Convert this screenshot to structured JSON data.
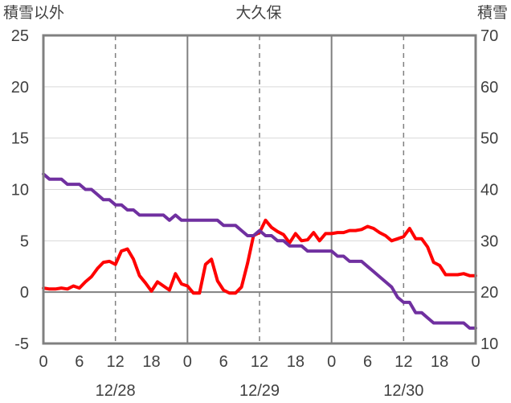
{
  "chart_data": {
    "type": "line",
    "title": "大久保",
    "left_axis_label": "積雪以外",
    "right_axis_label": "積雪",
    "y_left": {
      "min": -5,
      "max": 25,
      "step": 5,
      "ticks": [
        "25",
        "20",
        "15",
        "10",
        "5",
        "0",
        "-5"
      ]
    },
    "y_right": {
      "min": 10,
      "max": 70,
      "step": 10,
      "ticks": [
        "70",
        "60",
        "50",
        "40",
        "30",
        "20",
        "10"
      ]
    },
    "x": {
      "min": 0,
      "max": 72,
      "tick_step": 6,
      "tick_labels": [
        "0",
        "6",
        "12",
        "18",
        "0",
        "6",
        "12",
        "18",
        "0",
        "6",
        "12",
        "18",
        "0"
      ],
      "day_labels": [
        {
          "label": "12/28",
          "at": 12
        },
        {
          "label": "12/29",
          "at": 36
        },
        {
          "label": "12/30",
          "at": 60
        }
      ],
      "day_boundaries": [
        24,
        48
      ],
      "dashed_lines": [
        12,
        36,
        60
      ]
    },
    "grid": true,
    "series": [
      {
        "axis": "left",
        "color": "#ff0000",
        "x": [
          0,
          1,
          2,
          3,
          4,
          5,
          6,
          7,
          8,
          9,
          10,
          11,
          12,
          13,
          14,
          15,
          16,
          17,
          18,
          19,
          20,
          21,
          22,
          23,
          24,
          25,
          26,
          27,
          28,
          29,
          30,
          31,
          32,
          33,
          34,
          35,
          36,
          37,
          38,
          39,
          40,
          41,
          42,
          43,
          44,
          45,
          46,
          47,
          48,
          49,
          50,
          51,
          52,
          53,
          54,
          55,
          56,
          57,
          58,
          59,
          60,
          61,
          62,
          63,
          64,
          65,
          66,
          67,
          68,
          69,
          70,
          71,
          72
        ],
        "values": [
          0.4,
          0.3,
          0.3,
          0.4,
          0.3,
          0.6,
          0.4,
          1.0,
          1.5,
          2.3,
          2.9,
          3.0,
          2.7,
          4.0,
          4.2,
          3.2,
          1.6,
          0.9,
          0.1,
          1.0,
          0.6,
          0.2,
          1.8,
          0.8,
          0.6,
          -0.1,
          -0.1,
          2.7,
          3.2,
          1.1,
          0.2,
          -0.1,
          -0.1,
          0.5,
          2.8,
          5.5,
          5.8,
          7.0,
          6.3,
          5.9,
          5.6,
          4.8,
          5.7,
          5.0,
          5.1,
          5.8,
          5.0,
          5.7,
          5.7,
          5.8,
          5.8,
          6.0,
          6.0,
          6.1,
          6.4,
          6.2,
          5.8,
          5.5,
          5.0,
          5.2,
          5.4,
          6.2,
          5.2,
          5.2,
          4.4,
          2.9,
          2.6,
          1.7,
          1.7,
          1.7,
          1.8,
          1.6,
          1.6
        ]
      },
      {
        "axis": "right",
        "color": "#7030a0",
        "x": [
          0,
          1,
          2,
          3,
          4,
          5,
          6,
          7,
          8,
          9,
          10,
          11,
          12,
          13,
          14,
          15,
          16,
          17,
          18,
          19,
          20,
          21,
          22,
          23,
          24,
          25,
          26,
          27,
          28,
          29,
          30,
          31,
          32,
          33,
          34,
          35,
          36,
          37,
          38,
          39,
          40,
          41,
          42,
          43,
          44,
          45,
          46,
          47,
          48,
          49,
          50,
          51,
          52,
          53,
          54,
          55,
          56,
          57,
          58,
          59,
          60,
          61,
          62,
          63,
          64,
          65,
          66,
          67,
          68,
          69,
          70,
          71,
          72
        ],
        "values": [
          43,
          42,
          42,
          42,
          41,
          41,
          41,
          40,
          40,
          39,
          38,
          38,
          37,
          37,
          36,
          36,
          35,
          35,
          35,
          35,
          35,
          34,
          35,
          34,
          34,
          34,
          34,
          34,
          34,
          34,
          33,
          33,
          33,
          32,
          31,
          31,
          32,
          31,
          31,
          30,
          30,
          29,
          29,
          29,
          28,
          28,
          28,
          28,
          28,
          27,
          27,
          26,
          26,
          26,
          25,
          24,
          23,
          22,
          21,
          19,
          18,
          18,
          16,
          16,
          15,
          14,
          14,
          14,
          14,
          14,
          14,
          13,
          13
        ]
      }
    ]
  }
}
